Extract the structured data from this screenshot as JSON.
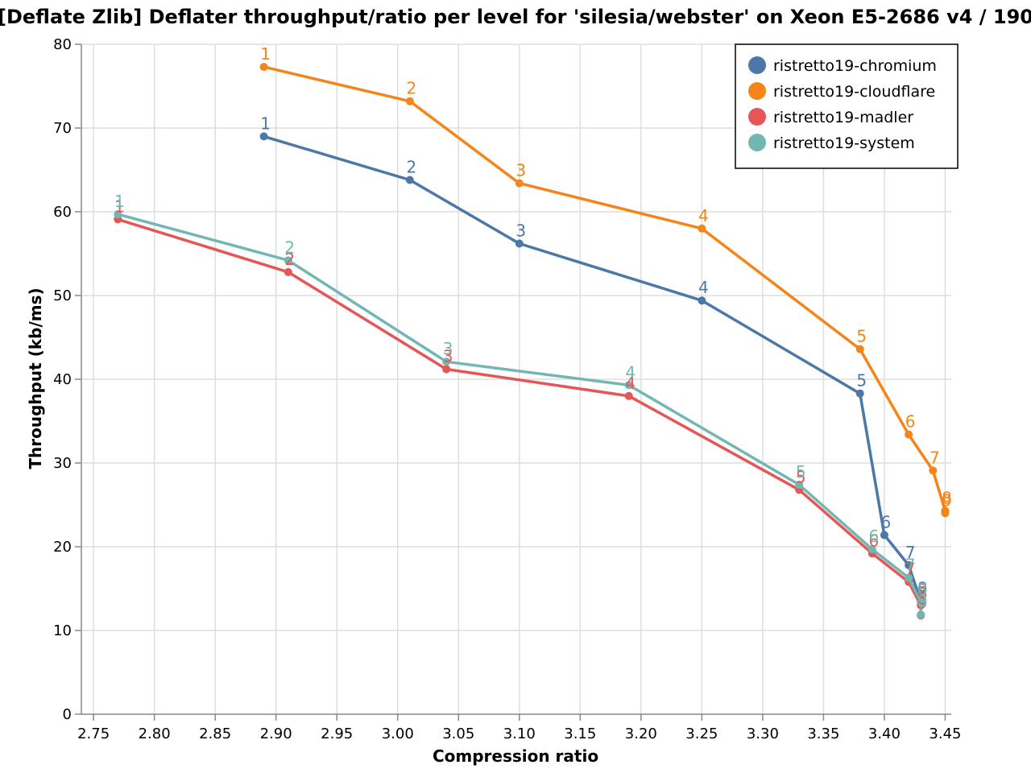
{
  "chart_data": {
    "type": "line",
    "title": "[Deflate Zlib] Deflater throughput/ratio per level for 'silesia/webster' on Xeon E5-2686 v4 / 190",
    "xlabel": "Compression ratio",
    "ylabel": "Throughput (kb/ms)",
    "xlim": [
      2.74,
      3.455
    ],
    "ylim": [
      0,
      80
    ],
    "xticks": [
      "2.75",
      "2.80",
      "2.85",
      "2.90",
      "2.95",
      "3.00",
      "3.05",
      "3.10",
      "3.15",
      "3.20",
      "3.25",
      "3.30",
      "3.35",
      "3.40",
      "3.45"
    ],
    "yticks": [
      "0",
      "10",
      "20",
      "30",
      "40",
      "50",
      "60",
      "70",
      "80"
    ],
    "grid": true,
    "legend_position": "top-right",
    "series": [
      {
        "name": "ristretto19-chromium",
        "color": "#4c78a8",
        "points": [
          {
            "x": 2.89,
            "y": 69.0,
            "label": "1"
          },
          {
            "x": 3.01,
            "y": 63.8,
            "label": "2"
          },
          {
            "x": 3.1,
            "y": 56.2,
            "label": "3"
          },
          {
            "x": 3.25,
            "y": 49.4,
            "label": "4"
          },
          {
            "x": 3.38,
            "y": 38.3,
            "label": "5"
          },
          {
            "x": 3.4,
            "y": 21.4,
            "label": "6"
          },
          {
            "x": 3.42,
            "y": 17.8,
            "label": "7"
          },
          {
            "x": 3.43,
            "y": 13.5,
            "label": "8"
          },
          {
            "x": 3.43,
            "y": 13.3,
            "label": "9"
          }
        ]
      },
      {
        "name": "ristretto19-cloudflare",
        "color": "#f58518",
        "points": [
          {
            "x": 2.89,
            "y": 77.3,
            "label": "1"
          },
          {
            "x": 3.01,
            "y": 73.2,
            "label": "2"
          },
          {
            "x": 3.1,
            "y": 63.4,
            "label": "3"
          },
          {
            "x": 3.25,
            "y": 58.0,
            "label": "4"
          },
          {
            "x": 3.38,
            "y": 43.6,
            "label": "5"
          },
          {
            "x": 3.42,
            "y": 33.4,
            "label": "6"
          },
          {
            "x": 3.44,
            "y": 29.1,
            "label": "7"
          },
          {
            "x": 3.45,
            "y": 24.3,
            "label": "8"
          },
          {
            "x": 3.45,
            "y": 24.0,
            "label": "9"
          }
        ]
      },
      {
        "name": "ristretto19-madler",
        "color": "#e45756",
        "points": [
          {
            "x": 2.77,
            "y": 59.1,
            "label": "1"
          },
          {
            "x": 2.91,
            "y": 52.8,
            "label": "2"
          },
          {
            "x": 3.04,
            "y": 41.2,
            "label": "3"
          },
          {
            "x": 3.19,
            "y": 38.0,
            "label": "4"
          },
          {
            "x": 3.33,
            "y": 26.8,
            "label": "5"
          },
          {
            "x": 3.39,
            "y": 19.2,
            "label": "6"
          },
          {
            "x": 3.42,
            "y": 15.8,
            "label": "7"
          },
          {
            "x": 3.43,
            "y": 13.0,
            "label": "8"
          },
          {
            "x": 3.43,
            "y": 11.8,
            "label": "9"
          }
        ]
      },
      {
        "name": "ristretto19-system",
        "color": "#72b7b2",
        "points": [
          {
            "x": 2.77,
            "y": 59.7,
            "label": "1"
          },
          {
            "x": 2.91,
            "y": 54.2,
            "label": "2"
          },
          {
            "x": 3.04,
            "y": 42.1,
            "label": "3"
          },
          {
            "x": 3.19,
            "y": 39.3,
            "label": "4"
          },
          {
            "x": 3.33,
            "y": 27.4,
            "label": "5"
          },
          {
            "x": 3.39,
            "y": 19.7,
            "label": "6"
          },
          {
            "x": 3.42,
            "y": 16.3,
            "label": "7"
          },
          {
            "x": 3.43,
            "y": 13.4,
            "label": "8"
          },
          {
            "x": 3.43,
            "y": 11.9,
            "label": "9"
          }
        ]
      }
    ]
  }
}
